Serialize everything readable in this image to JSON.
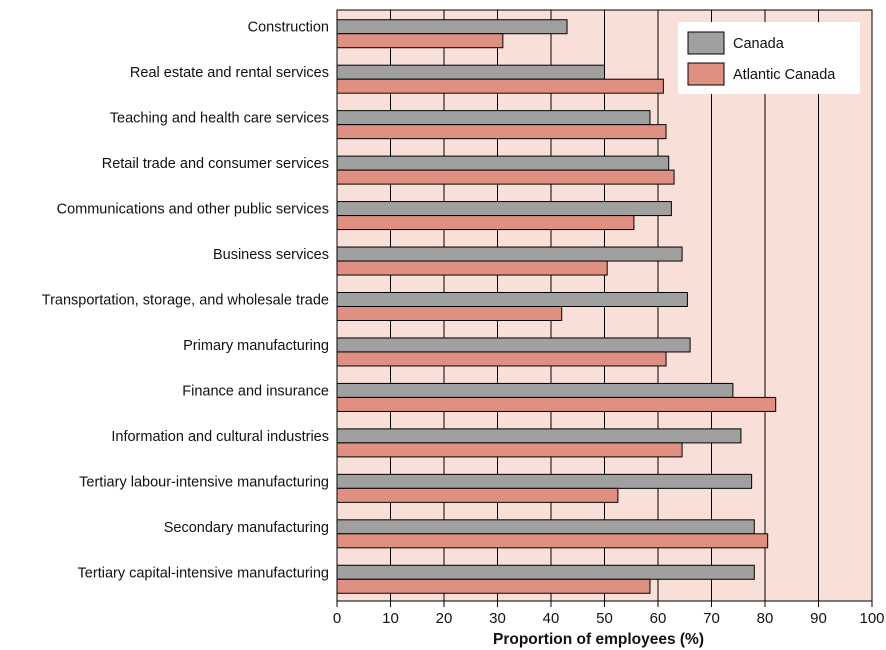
{
  "chart_data": {
    "type": "bar",
    "orientation": "horizontal",
    "categories": [
      "Construction",
      "Real estate and rental services",
      "Teaching and health care services",
      "Retail trade and consumer services",
      "Communications and other public services",
      "Business services",
      "Transportation, storage, and wholesale trade",
      "Primary manufacturing",
      "Finance and insurance",
      "Information and cultural industries",
      "Tertiary labour-intensive manufacturing",
      "Secondary manufacturing",
      "Tertiary capital-intensive manufacturing"
    ],
    "series": [
      {
        "name": "Canada",
        "color": "#a0a0a0",
        "values": [
          43,
          50,
          58.5,
          62,
          62.5,
          64.5,
          65.5,
          66,
          74,
          75.5,
          77.5,
          78,
          78
        ]
      },
      {
        "name": "Atlantic Canada",
        "color": "#e09080",
        "values": [
          31,
          61,
          61.5,
          63,
          55.5,
          50.5,
          42,
          61.5,
          82,
          64.5,
          52.5,
          80.5,
          58.5
        ]
      }
    ],
    "xlabel": "Proportion of employees (%)",
    "xlim": [
      0,
      100
    ],
    "xticks": [
      0,
      10,
      20,
      30,
      40,
      50,
      60,
      70,
      80,
      90,
      100
    ],
    "grid": "vertical",
    "legend": "top-right",
    "plot_background": "#f8e0d8"
  }
}
